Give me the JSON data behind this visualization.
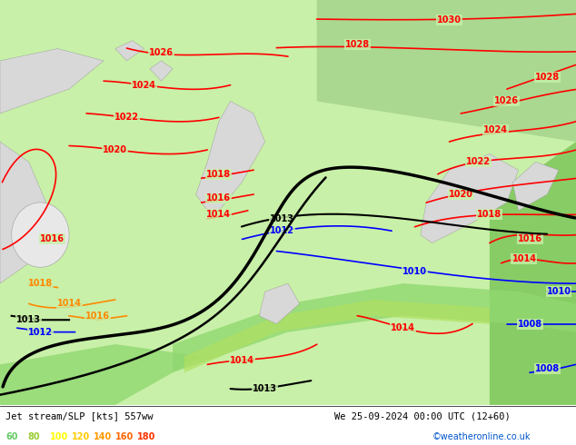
{
  "title_left": "Jet stream/SLP [kts] 557ww",
  "title_right": "We 25-09-2024 00:00 UTC (12+60)",
  "credit": "©weatheronline.co.uk",
  "legend_values": [
    "60",
    "80",
    "100",
    "120",
    "140",
    "160",
    "180"
  ],
  "legend_colors": [
    "#66cc66",
    "#99cc33",
    "#ffff00",
    "#ffcc00",
    "#ff9900",
    "#ff6600",
    "#ff3300"
  ],
  "bg_light_green": "#b5e89a",
  "bg_medium_green": "#8ecc6e",
  "bg_dark_green": "#5aaa3c",
  "bg_very_light_green": "#d4f0b8",
  "bg_white": "#f0f0f0",
  "slp_red_color": "#ff0000",
  "slp_black_color": "#000000",
  "slp_blue_color": "#0000ff",
  "slp_orange_color": "#ff9900",
  "land_color": "#e8e8e8",
  "sea_light": "#c8eaaa",
  "bottom_bg": "#ffffff",
  "fig_width": 6.34,
  "fig_height": 4.9,
  "dpi": 100
}
